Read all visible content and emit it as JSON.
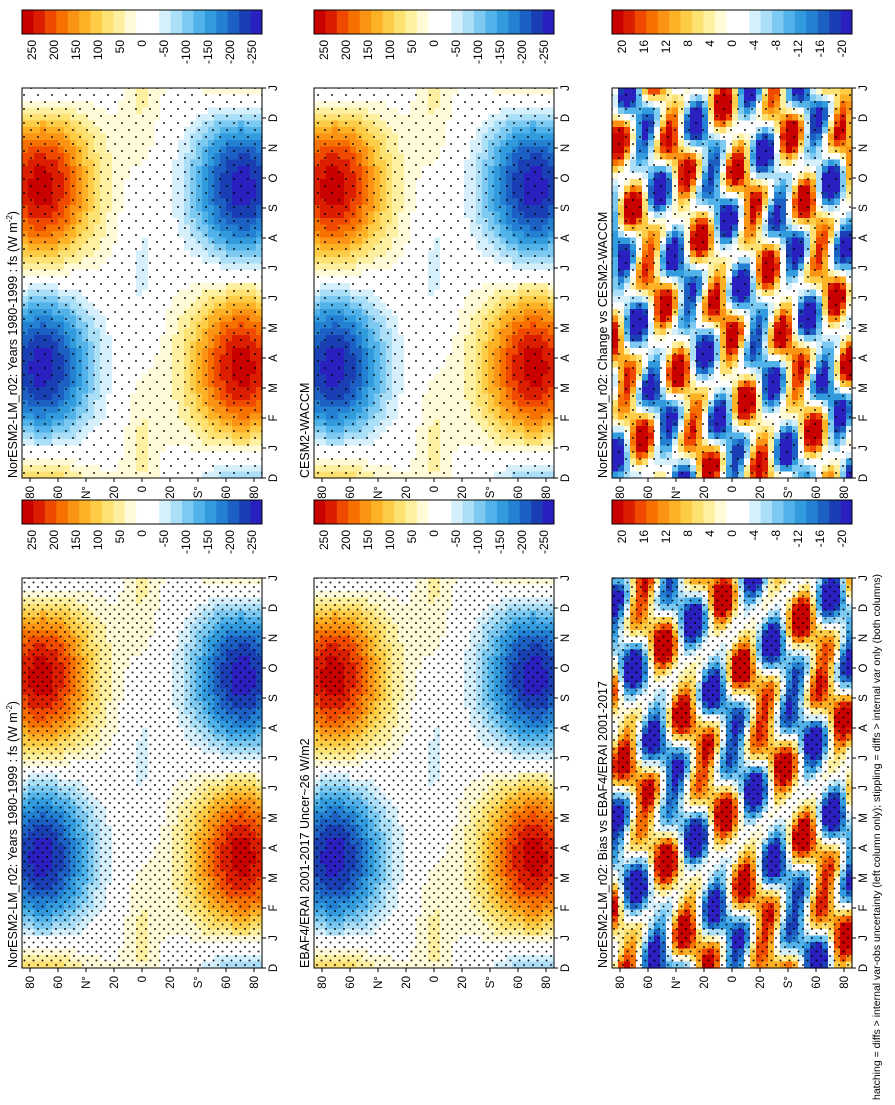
{
  "figure": {
    "type": "heatmap",
    "orientation_note": "page rotated 90 degrees clockwise; month axis runs top-to-bottom, latitude runs left-to-right",
    "footnote": "hatching = diffs > internal var-obs uncertainty (left column only); stippling = diffs > internal var only (both columns)"
  },
  "chart_data": [
    {
      "type": "heatmap",
      "id": "nor_clim",
      "title": "NorESM2-LM_r02: Years 1980-1999 : fs (W m",
      "title_sup": "-2",
      "title_end": ")",
      "variable": "fs",
      "units": "W m-2",
      "x_ticks": [
        "D",
        "J",
        "F",
        "M",
        "A",
        "M",
        "J",
        "J",
        "A",
        "S",
        "O",
        "N",
        "D",
        "J"
      ],
      "y_ticks": [
        "80",
        "60",
        "N",
        "20",
        "0",
        "20",
        "S",
        "60",
        "80"
      ],
      "y_tick_unit": "°",
      "colorbar_labels": [
        "250",
        "200",
        "150",
        "100",
        "50",
        "0",
        "-50",
        "-100",
        "-150",
        "-200",
        "-250"
      ],
      "colorbar_range": [
        -250,
        250
      ],
      "colormap": [
        "#c80000",
        "#dc1e00",
        "#ef4a00",
        "#f77100",
        "#fb9414",
        "#fdb226",
        "#fdcd48",
        "#fde173",
        "#fdf0a0",
        "#fffbd8",
        "#ffffff",
        "#ffffff",
        "#d6f0fb",
        "#aadff7",
        "#7ccaf1",
        "#52b3ea",
        "#319bde",
        "#2380d2",
        "#1d60c4",
        "#1a3fb5",
        "#2a1fbf"
      ],
      "pattern": "season",
      "hatched": true
    },
    {
      "type": "heatmap",
      "id": "cesm_clim",
      "title": "NorESM2-LM_r02: Years 1980-1999 : fs (W m",
      "title_sup": "-2",
      "title_end": ")",
      "x_ticks": [
        "D",
        "J",
        "F",
        "M",
        "A",
        "M",
        "J",
        "J",
        "A",
        "S",
        "O",
        "N",
        "D",
        "J"
      ],
      "y_ticks": [
        "80",
        "60",
        "N",
        "20",
        "0",
        "20",
        "S",
        "60",
        "80"
      ],
      "y_tick_unit": "°",
      "colorbar_labels": [
        "250",
        "200",
        "150",
        "100",
        "50",
        "0",
        "-50",
        "-100",
        "-150",
        "-200",
        "-250"
      ],
      "colorbar_range": [
        -250,
        250
      ],
      "pattern": "season",
      "hatched": false
    },
    {
      "type": "heatmap",
      "id": "obs_clim",
      "title": "EBAF4/ERAI 2001-2017 Uncer~26 W/m2",
      "x_ticks": [
        "D",
        "J",
        "F",
        "M",
        "A",
        "M",
        "J",
        "J",
        "A",
        "S",
        "O",
        "N",
        "D",
        "J"
      ],
      "y_ticks": [
        "80",
        "60",
        "N",
        "20",
        "0",
        "20",
        "S",
        "60",
        "80"
      ],
      "y_tick_unit": "°",
      "colorbar_labels": [
        "250",
        "200",
        "150",
        "100",
        "50",
        "0",
        "-50",
        "-100",
        "-150",
        "-200",
        "-250"
      ],
      "colorbar_range": [
        -250,
        250
      ],
      "pattern": "season",
      "hatched": true
    },
    {
      "type": "heatmap",
      "id": "cesm_model",
      "title": "CESM2-WACCM",
      "x_ticks": [
        "D",
        "J",
        "F",
        "M",
        "A",
        "M",
        "J",
        "J",
        "A",
        "S",
        "O",
        "N",
        "D",
        "J"
      ],
      "y_ticks": [
        "80",
        "60",
        "N",
        "20",
        "0",
        "20",
        "S",
        "60",
        "80"
      ],
      "y_tick_unit": "°",
      "colorbar_labels": [
        "250",
        "200",
        "150",
        "100",
        "50",
        "0",
        "-50",
        "-100",
        "-150",
        "-200",
        "-250"
      ],
      "colorbar_range": [
        -250,
        250
      ],
      "pattern": "season",
      "hatched": false
    },
    {
      "type": "heatmap",
      "id": "bias",
      "title": "NorESM2-LM_r02: Bias vs EBAF4/ERAI 2001-2017",
      "x_ticks": [
        "D",
        "J",
        "F",
        "M",
        "A",
        "M",
        "J",
        "J",
        "A",
        "S",
        "O",
        "N",
        "D",
        "J"
      ],
      "y_ticks": [
        "80",
        "60",
        "N",
        "20",
        "0",
        "20",
        "S",
        "60",
        "80"
      ],
      "y_tick_unit": "°",
      "colorbar_labels": [
        "20",
        "16",
        "12",
        "8",
        "4",
        "0",
        "-4",
        "-8",
        "-12",
        "-16",
        "-20"
      ],
      "colorbar_range": [
        -20,
        20
      ],
      "pattern": "diff",
      "hatched": true
    },
    {
      "type": "heatmap",
      "id": "change",
      "title": "NorESM2-LM_r02: Change vs CESM2-WACCM",
      "x_ticks": [
        "D",
        "J",
        "F",
        "M",
        "A",
        "M",
        "J",
        "J",
        "A",
        "S",
        "O",
        "N",
        "D",
        "J"
      ],
      "y_ticks": [
        "80",
        "60",
        "N",
        "20",
        "0",
        "20",
        "S",
        "60",
        "80"
      ],
      "y_tick_unit": "°",
      "colorbar_labels": [
        "20",
        "16",
        "12",
        "8",
        "4",
        "0",
        "-4",
        "-8",
        "-12",
        "-16",
        "-20"
      ],
      "colorbar_range": [
        -20,
        20
      ],
      "pattern": "diff2",
      "hatched": false
    }
  ]
}
